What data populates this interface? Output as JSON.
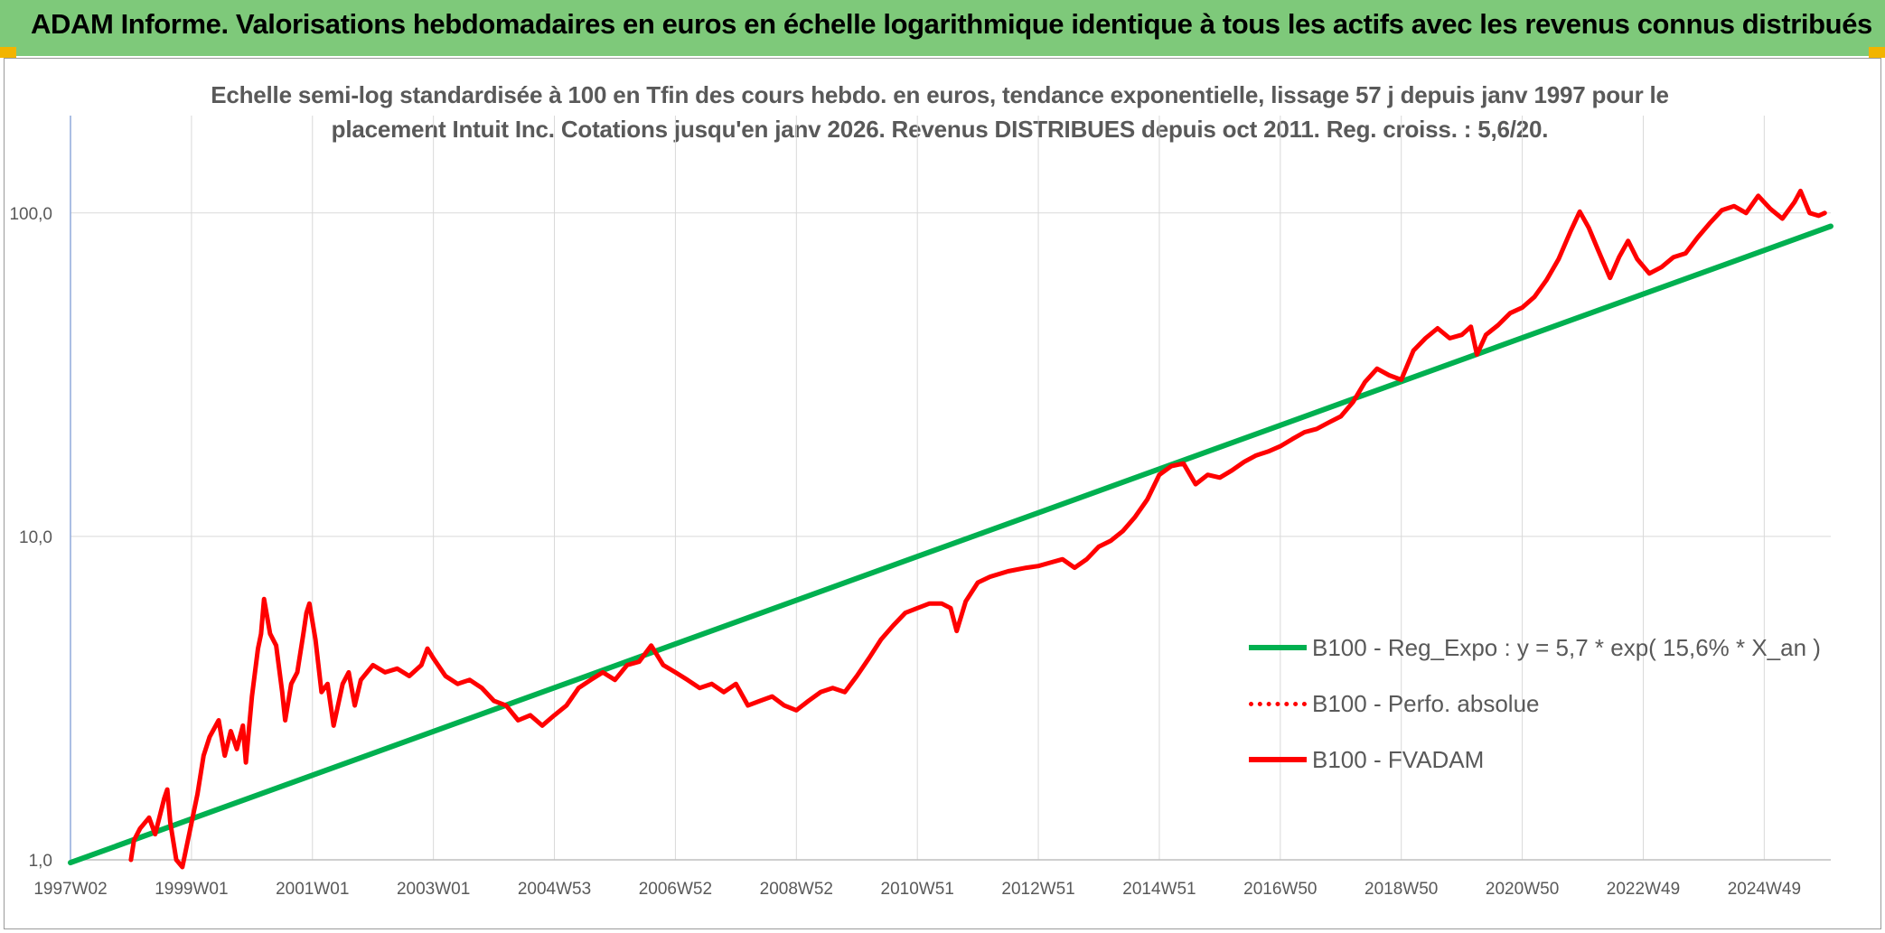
{
  "banner": {
    "title": "ADAM Informe. Valorisations hebdomadaires en euros en échelle logarithmique identique à tous les actifs avec les revenus connus distribués"
  },
  "colors": {
    "banner_bg": "#7ec97a",
    "trend": "#00b050",
    "series": "#ff0000",
    "grid": "#d9d9d9",
    "axis_text": "#595959"
  },
  "chart_data": {
    "type": "line",
    "title_lines": [
      "Echelle semi-log standardisée à 100 en Tfin des cours hebdo. en euros, tendance exponentielle, lissage 57 j depuis janv 1997 pour le",
      "placement Intuit Inc. Cotations jusqu'en janv 2026. Revenus DISTRIBUES depuis oct 2011. Reg. croiss. : 5,6/20."
    ],
    "y_scale": "log",
    "ylim": [
      1,
      200
    ],
    "xlim": [
      1997.0,
      2026.1
    ],
    "y_ticks": [
      {
        "value": 1,
        "label": "1,0"
      },
      {
        "value": 10,
        "label": "10,0"
      },
      {
        "value": 100,
        "label": "100,0"
      }
    ],
    "x_ticks": [
      {
        "value": 1997.0,
        "label": "1997W02"
      },
      {
        "value": 1999.0,
        "label": "1999W01"
      },
      {
        "value": 2001.0,
        "label": "2001W01"
      },
      {
        "value": 2003.0,
        "label": "2003W01"
      },
      {
        "value": 2005.0,
        "label": "2004W53"
      },
      {
        "value": 2007.0,
        "label": "2006W52"
      },
      {
        "value": 2009.0,
        "label": "2008W52"
      },
      {
        "value": 2011.0,
        "label": "2010W51"
      },
      {
        "value": 2013.0,
        "label": "2012W51"
      },
      {
        "value": 2015.0,
        "label": "2014W51"
      },
      {
        "value": 2017.0,
        "label": "2016W50"
      },
      {
        "value": 2019.0,
        "label": "2018W50"
      },
      {
        "value": 2021.0,
        "label": "2020W50"
      },
      {
        "value": 2023.0,
        "label": "2022W49"
      },
      {
        "value": 2025.0,
        "label": "2024W49"
      }
    ],
    "grid": true,
    "legend_position": "right",
    "series": [
      {
        "name": "B100 - Reg_Expo : y = 5,7 * exp( 15,6% *  X_an )",
        "color": "#00b050",
        "style": "solid",
        "points": [
          [
            1997.0,
            0.98
          ],
          [
            2026.1,
            91
          ]
        ]
      },
      {
        "name": "B100 - Perfo. absolue",
        "color": "#ff0000",
        "style": "dotted",
        "points": []
      },
      {
        "name": "B100 - FVADAM",
        "color": "#ff0000",
        "style": "solid",
        "points": [
          [
            1998.0,
            1.0
          ],
          [
            1998.05,
            1.15
          ],
          [
            1998.15,
            1.25
          ],
          [
            1998.3,
            1.35
          ],
          [
            1998.4,
            1.2
          ],
          [
            1998.55,
            1.55
          ],
          [
            1998.6,
            1.65
          ],
          [
            1998.65,
            1.3
          ],
          [
            1998.75,
            1.0
          ],
          [
            1998.85,
            0.95
          ],
          [
            1998.92,
            1.1
          ],
          [
            1999.0,
            1.3
          ],
          [
            1999.1,
            1.6
          ],
          [
            1999.2,
            2.1
          ],
          [
            1999.3,
            2.4
          ],
          [
            1999.45,
            2.7
          ],
          [
            1999.55,
            2.1
          ],
          [
            1999.65,
            2.5
          ],
          [
            1999.75,
            2.2
          ],
          [
            1999.85,
            2.6
          ],
          [
            1999.9,
            2.0
          ],
          [
            2000.0,
            3.2
          ],
          [
            2000.1,
            4.5
          ],
          [
            2000.15,
            5.0
          ],
          [
            2000.2,
            6.4
          ],
          [
            2000.3,
            5.0
          ],
          [
            2000.4,
            4.6
          ],
          [
            2000.5,
            3.3
          ],
          [
            2000.55,
            2.7
          ],
          [
            2000.65,
            3.5
          ],
          [
            2000.75,
            3.8
          ],
          [
            2000.85,
            5.0
          ],
          [
            2000.9,
            5.8
          ],
          [
            2000.95,
            6.2
          ],
          [
            2001.05,
            4.8
          ],
          [
            2001.15,
            3.3
          ],
          [
            2001.25,
            3.5
          ],
          [
            2001.35,
            2.6
          ],
          [
            2001.5,
            3.5
          ],
          [
            2001.6,
            3.8
          ],
          [
            2001.7,
            3.0
          ],
          [
            2001.8,
            3.6
          ],
          [
            2002.0,
            4.0
          ],
          [
            2002.2,
            3.8
          ],
          [
            2002.4,
            3.9
          ],
          [
            2002.6,
            3.7
          ],
          [
            2002.8,
            4.0
          ],
          [
            2002.9,
            4.5
          ],
          [
            2003.0,
            4.2
          ],
          [
            2003.2,
            3.7
          ],
          [
            2003.4,
            3.5
          ],
          [
            2003.6,
            3.6
          ],
          [
            2003.8,
            3.4
          ],
          [
            2004.0,
            3.1
          ],
          [
            2004.2,
            3.0
          ],
          [
            2004.4,
            2.7
          ],
          [
            2004.6,
            2.8
          ],
          [
            2004.8,
            2.6
          ],
          [
            2005.0,
            2.8
          ],
          [
            2005.2,
            3.0
          ],
          [
            2005.4,
            3.4
          ],
          [
            2005.6,
            3.6
          ],
          [
            2005.8,
            3.8
          ],
          [
            2006.0,
            3.6
          ],
          [
            2006.2,
            4.0
          ],
          [
            2006.4,
            4.1
          ],
          [
            2006.6,
            4.6
          ],
          [
            2006.8,
            4.0
          ],
          [
            2007.0,
            3.8
          ],
          [
            2007.2,
            3.6
          ],
          [
            2007.4,
            3.4
          ],
          [
            2007.6,
            3.5
          ],
          [
            2007.8,
            3.3
          ],
          [
            2008.0,
            3.5
          ],
          [
            2008.2,
            3.0
          ],
          [
            2008.4,
            3.1
          ],
          [
            2008.6,
            3.2
          ],
          [
            2008.8,
            3.0
          ],
          [
            2009.0,
            2.9
          ],
          [
            2009.2,
            3.1
          ],
          [
            2009.4,
            3.3
          ],
          [
            2009.6,
            3.4
          ],
          [
            2009.8,
            3.3
          ],
          [
            2010.0,
            3.7
          ],
          [
            2010.2,
            4.2
          ],
          [
            2010.4,
            4.8
          ],
          [
            2010.6,
            5.3
          ],
          [
            2010.8,
            5.8
          ],
          [
            2011.0,
            6.0
          ],
          [
            2011.2,
            6.2
          ],
          [
            2011.4,
            6.2
          ],
          [
            2011.55,
            6.0
          ],
          [
            2011.65,
            5.1
          ],
          [
            2011.8,
            6.3
          ],
          [
            2012.0,
            7.2
          ],
          [
            2012.2,
            7.5
          ],
          [
            2012.5,
            7.8
          ],
          [
            2012.8,
            8.0
          ],
          [
            2013.0,
            8.1
          ],
          [
            2013.2,
            8.3
          ],
          [
            2013.4,
            8.5
          ],
          [
            2013.6,
            8.0
          ],
          [
            2013.8,
            8.5
          ],
          [
            2014.0,
            9.3
          ],
          [
            2014.2,
            9.7
          ],
          [
            2014.4,
            10.4
          ],
          [
            2014.6,
            11.5
          ],
          [
            2014.8,
            13.0
          ],
          [
            2015.0,
            15.5
          ],
          [
            2015.2,
            16.5
          ],
          [
            2015.4,
            16.8
          ],
          [
            2015.6,
            14.5
          ],
          [
            2015.8,
            15.5
          ],
          [
            2016.0,
            15.2
          ],
          [
            2016.2,
            16.0
          ],
          [
            2016.4,
            17.0
          ],
          [
            2016.6,
            17.8
          ],
          [
            2016.8,
            18.3
          ],
          [
            2017.0,
            19.0
          ],
          [
            2017.2,
            20.0
          ],
          [
            2017.4,
            21.0
          ],
          [
            2017.6,
            21.5
          ],
          [
            2017.8,
            22.5
          ],
          [
            2018.0,
            23.5
          ],
          [
            2018.2,
            26.0
          ],
          [
            2018.4,
            30.0
          ],
          [
            2018.6,
            33.0
          ],
          [
            2018.8,
            31.5
          ],
          [
            2019.0,
            30.5
          ],
          [
            2019.2,
            37.5
          ],
          [
            2019.4,
            41.0
          ],
          [
            2019.6,
            44.0
          ],
          [
            2019.8,
            41.0
          ],
          [
            2020.0,
            42.0
          ],
          [
            2020.15,
            44.5
          ],
          [
            2020.25,
            36.5
          ],
          [
            2020.4,
            42.0
          ],
          [
            2020.6,
            45.0
          ],
          [
            2020.8,
            49.0
          ],
          [
            2021.0,
            51.0
          ],
          [
            2021.2,
            55.0
          ],
          [
            2021.4,
            62.0
          ],
          [
            2021.6,
            72.0
          ],
          [
            2021.8,
            88.0
          ],
          [
            2021.95,
            101.0
          ],
          [
            2022.1,
            90.0
          ],
          [
            2022.25,
            77.0
          ],
          [
            2022.45,
            63.0
          ],
          [
            2022.6,
            73.0
          ],
          [
            2022.75,
            82.0
          ],
          [
            2022.9,
            72.0
          ],
          [
            2023.1,
            65.0
          ],
          [
            2023.3,
            68.0
          ],
          [
            2023.5,
            73.0
          ],
          [
            2023.7,
            75.0
          ],
          [
            2023.9,
            84.0
          ],
          [
            2024.1,
            93.0
          ],
          [
            2024.3,
            102.0
          ],
          [
            2024.5,
            105.0
          ],
          [
            2024.7,
            100.0
          ],
          [
            2024.9,
            113.0
          ],
          [
            2025.1,
            103.0
          ],
          [
            2025.3,
            96.0
          ],
          [
            2025.5,
            108.0
          ],
          [
            2025.6,
            117.0
          ],
          [
            2025.75,
            100.0
          ],
          [
            2025.9,
            98.0
          ],
          [
            2026.0,
            100.0
          ]
        ]
      }
    ]
  }
}
